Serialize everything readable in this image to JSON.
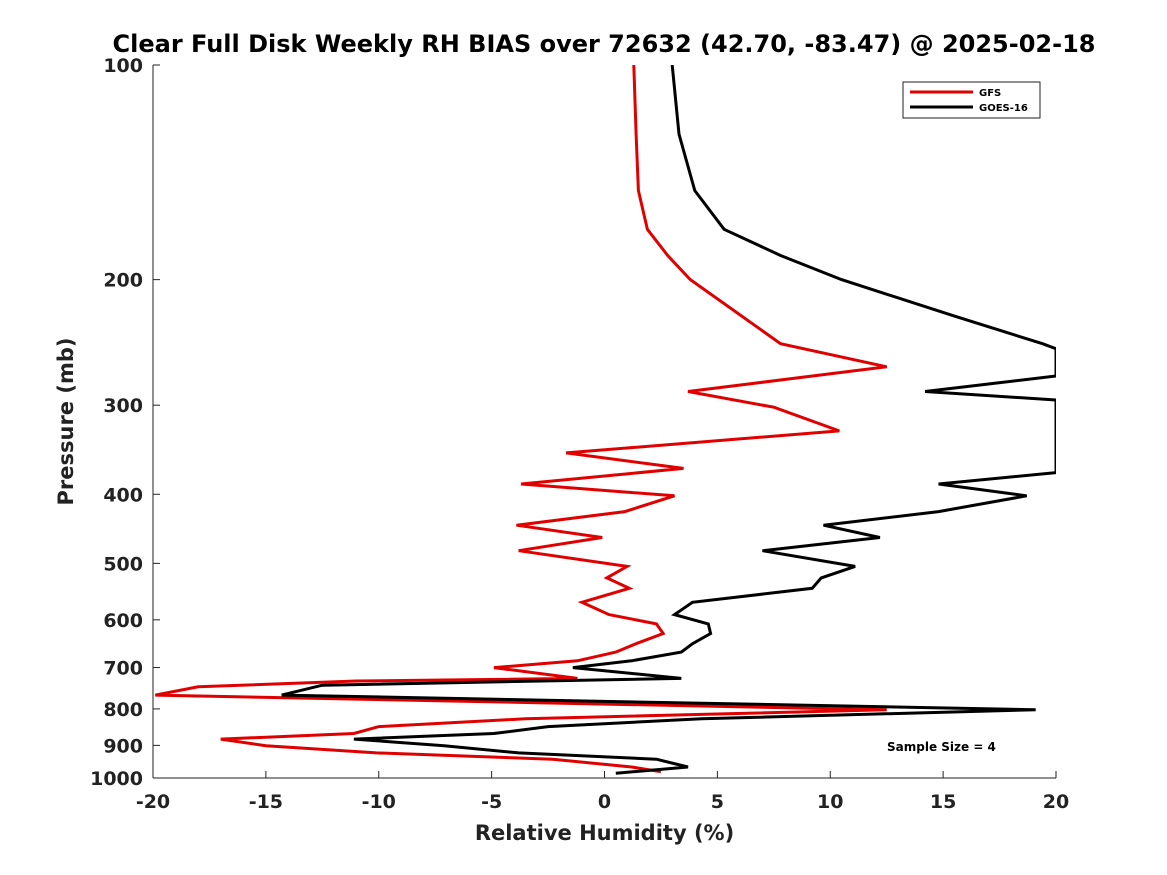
{
  "chart_data": {
    "type": "line",
    "title": "Clear Full Disk Weekly RH BIAS over 72632 (42.70, -83.47) @ 2025-02-18",
    "xlabel": "Relative Humidity (%)",
    "ylabel": "Pressure (mb)",
    "xlim": [
      -20,
      20
    ],
    "ylim": [
      100,
      1000
    ],
    "y_scale": "log",
    "y_reversed": true,
    "x_ticks": [
      -20,
      -15,
      -10,
      -5,
      0,
      5,
      10,
      15,
      20
    ],
    "y_ticks": [
      100,
      200,
      300,
      400,
      500,
      600,
      700,
      800,
      900,
      1000
    ],
    "grid": false,
    "legend_position": "top-right",
    "annotation": "Sample Size = 4",
    "series": [
      {
        "name": "GFS",
        "color": "#e00000",
        "points": [
          [
            1.3,
            100
          ],
          [
            1.4,
            125
          ],
          [
            1.5,
            150
          ],
          [
            1.9,
            170
          ],
          [
            2.8,
            185
          ],
          [
            3.8,
            200
          ],
          [
            7.8,
            246
          ],
          [
            12.5,
            265
          ],
          [
            3.7,
            287
          ],
          [
            7.5,
            302
          ],
          [
            10.4,
            326
          ],
          [
            -1.7,
            350
          ],
          [
            3.5,
            368
          ],
          [
            -3.7,
            387
          ],
          [
            3.1,
            402
          ],
          [
            0.9,
            423
          ],
          [
            -3.9,
            442
          ],
          [
            -0.1,
            460
          ],
          [
            -3.8,
            480
          ],
          [
            1.0,
            505
          ],
          [
            0.1,
            524
          ],
          [
            1.1,
            542
          ],
          [
            -1.0,
            567
          ],
          [
            0.2,
            590
          ],
          [
            2.3,
            608
          ],
          [
            2.6,
            627
          ],
          [
            1.4,
            648
          ],
          [
            0.5,
            666
          ],
          [
            -1.2,
            685
          ],
          [
            -4.9,
            700
          ],
          [
            -1.2,
            725
          ],
          [
            -11.0,
            731
          ],
          [
            -18.0,
            745
          ],
          [
            -19.9,
            765
          ],
          [
            12.5,
            802
          ],
          [
            -3.5,
            826
          ],
          [
            -10.0,
            847
          ],
          [
            -11.1,
            866
          ],
          [
            -17.0,
            882
          ],
          [
            -15.0,
            901
          ],
          [
            -10.1,
            922
          ],
          [
            -2.3,
            941
          ],
          [
            1.2,
            965
          ],
          [
            2.5,
            980
          ]
        ]
      },
      {
        "name": "GOES-16",
        "color": "#000000",
        "points": [
          [
            3.0,
            100
          ],
          [
            3.3,
            125
          ],
          [
            4.0,
            150
          ],
          [
            5.3,
            170
          ],
          [
            7.8,
            185
          ],
          [
            10.5,
            200
          ],
          [
            15.5,
            225
          ],
          [
            19.4,
            246
          ],
          [
            20.0,
            250
          ],
          [
            20.0,
            265
          ],
          [
            20.0,
            273
          ],
          [
            14.2,
            287
          ],
          [
            20.0,
            295
          ],
          [
            20.0,
            373
          ],
          [
            14.8,
            387
          ],
          [
            18.7,
            402
          ],
          [
            14.8,
            423
          ],
          [
            9.7,
            442
          ],
          [
            12.2,
            460
          ],
          [
            7.0,
            480
          ],
          [
            11.1,
            505
          ],
          [
            9.6,
            524
          ],
          [
            9.2,
            542
          ],
          [
            3.9,
            567
          ],
          [
            3.1,
            590
          ],
          [
            4.6,
            608
          ],
          [
            4.7,
            627
          ],
          [
            3.9,
            648
          ],
          [
            3.4,
            666
          ],
          [
            1.2,
            685
          ],
          [
            -1.4,
            700
          ],
          [
            3.4,
            725
          ],
          [
            -12.5,
            741
          ],
          [
            -14.3,
            765
          ],
          [
            19.1,
            802
          ],
          [
            4.3,
            826
          ],
          [
            -2.5,
            847
          ],
          [
            -4.9,
            866
          ],
          [
            -11.1,
            882
          ],
          [
            -7.1,
            901
          ],
          [
            -3.8,
            922
          ],
          [
            2.3,
            941
          ],
          [
            3.7,
            965
          ],
          [
            0.5,
            985
          ]
        ]
      }
    ]
  }
}
